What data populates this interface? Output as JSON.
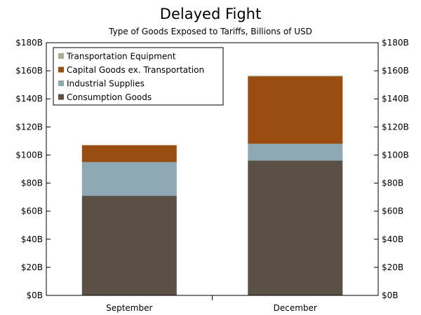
{
  "chart_data": {
    "type": "bar",
    "stacked": true,
    "title": "Delayed Fight",
    "subtitle": "Type of Goods Exposed to Tariffs, Billions of USD",
    "categories": [
      "September",
      "December"
    ],
    "series": [
      {
        "name": "Consumption Goods",
        "values": [
          71,
          96
        ],
        "color": "#5b5046"
      },
      {
        "name": "Industrial Supplies",
        "values": [
          24,
          12
        ],
        "color": "#8ea8b4"
      },
      {
        "name": "Capital Goods ex. Transportation",
        "values": [
          12,
          48
        ],
        "color": "#9a4d10"
      },
      {
        "name": "Transportation Equipment",
        "values": [
          0,
          0.5
        ],
        "color": "#a9ad95"
      }
    ],
    "legend_order": [
      "Transportation Equipment",
      "Capital Goods ex. Transportation",
      "Industrial Supplies",
      "Consumption Goods"
    ],
    "legend_position": "top-left",
    "ylim": [
      0,
      180
    ],
    "yticks": [
      0,
      20,
      40,
      60,
      80,
      100,
      120,
      140,
      160,
      180
    ],
    "ytick_labels": [
      "$0B",
      "$20B",
      "$40B",
      "$60B",
      "$80B",
      "$100B",
      "$120B",
      "$140B",
      "$160B",
      "$180B"
    ],
    "dual_y_axis": true,
    "grid": false
  }
}
